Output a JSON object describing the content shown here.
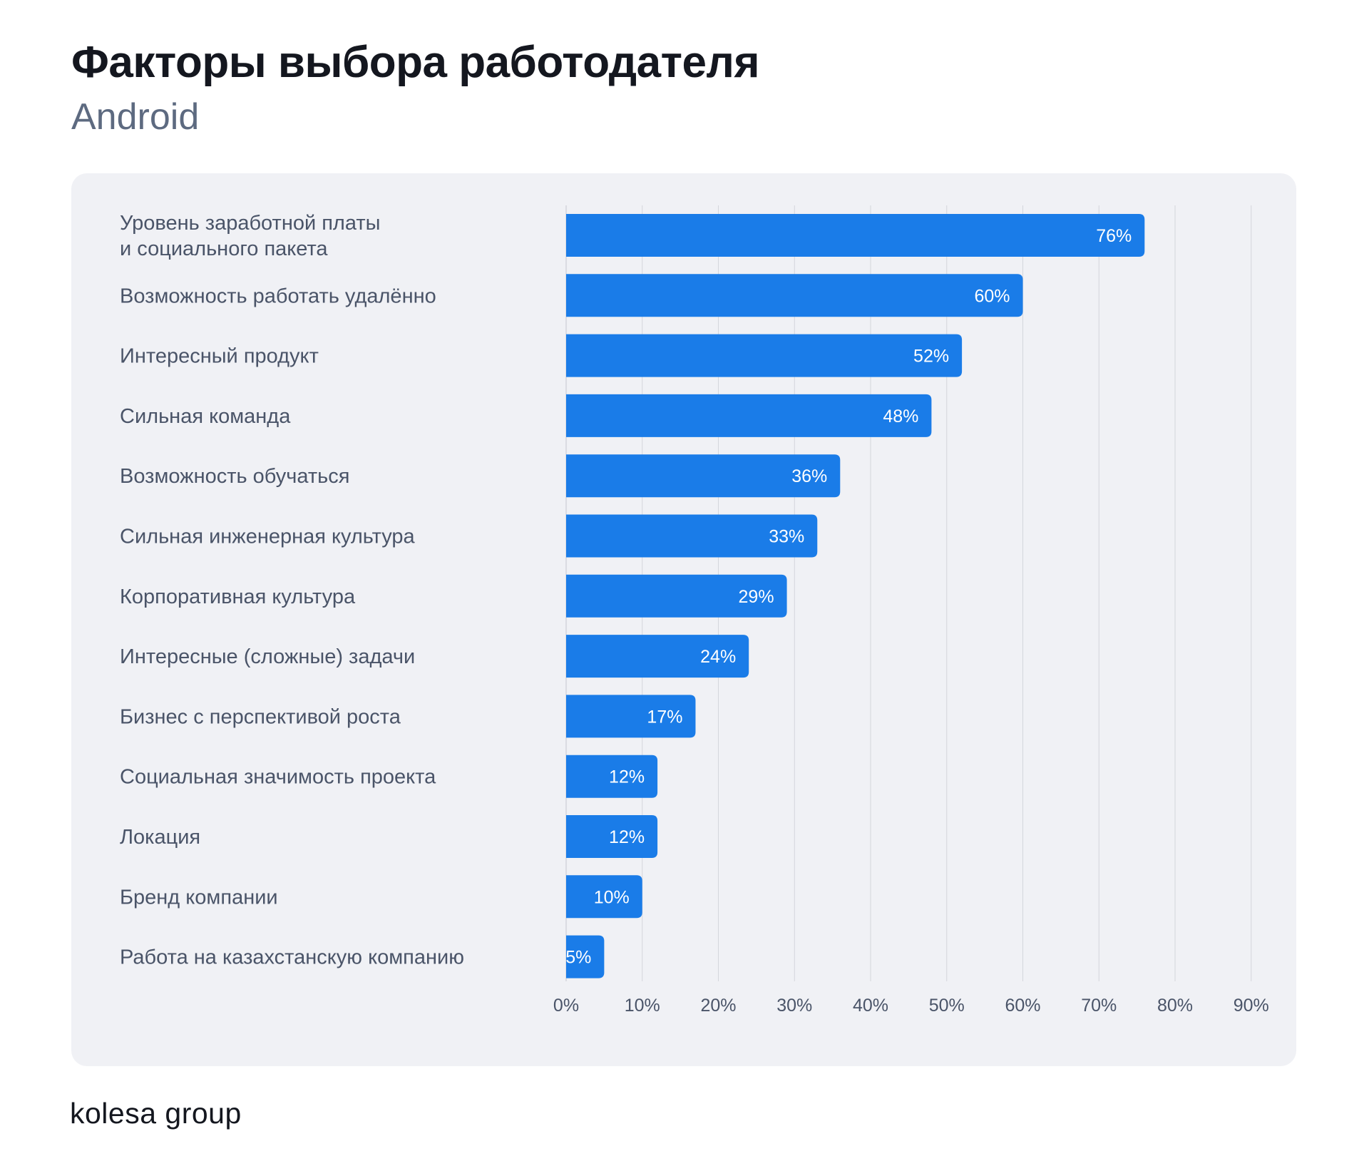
{
  "header": {
    "title": "Факторы выбора работодателя",
    "subtitle": "Android"
  },
  "brand": {
    "logo_text": "kolesa group"
  },
  "colors": {
    "bar": "#1a7ce8",
    "bar_label": "#ffffff",
    "category_label": "#4a5468",
    "tick_label": "#4a5468",
    "grid": "#d4d6dc",
    "panel": "#f0f1f5"
  },
  "chart_data": {
    "type": "bar",
    "orientation": "horizontal",
    "title": "Факторы выбора работодателя",
    "subtitle": "Android",
    "categories": [
      [
        "Уровень заработной платы",
        "и социального пакета"
      ],
      [
        "Возможность работать удалённо"
      ],
      [
        "Интересный продукт"
      ],
      [
        "Сильная команда"
      ],
      [
        "Возможность обучаться"
      ],
      [
        "Сильная инженерная культура"
      ],
      [
        "Корпоративная культура"
      ],
      [
        "Интересные (сложные) задачи"
      ],
      [
        "Бизнес с перспективой роста"
      ],
      [
        "Социальная значимость проекта"
      ],
      [
        "Локация"
      ],
      [
        "Бренд компании"
      ],
      [
        "Работа на казахстанскую компанию"
      ]
    ],
    "values": [
      76,
      60,
      52,
      48,
      36,
      33,
      29,
      24,
      17,
      12,
      12,
      10,
      5
    ],
    "value_labels": [
      "76%",
      "60%",
      "52%",
      "48%",
      "36%",
      "33%",
      "29%",
      "24%",
      "17%",
      "12%",
      "12%",
      "10%",
      "5%"
    ],
    "x_ticks": [
      0,
      10,
      20,
      30,
      40,
      50,
      60,
      70,
      80,
      90
    ],
    "x_tick_labels": [
      "0%",
      "10%",
      "20%",
      "30%",
      "40%",
      "50%",
      "60%",
      "70%",
      "80%",
      "90%"
    ],
    "xlim": [
      0,
      90
    ],
    "xlabel": "",
    "ylabel": "",
    "grid": true,
    "legend": "none"
  }
}
